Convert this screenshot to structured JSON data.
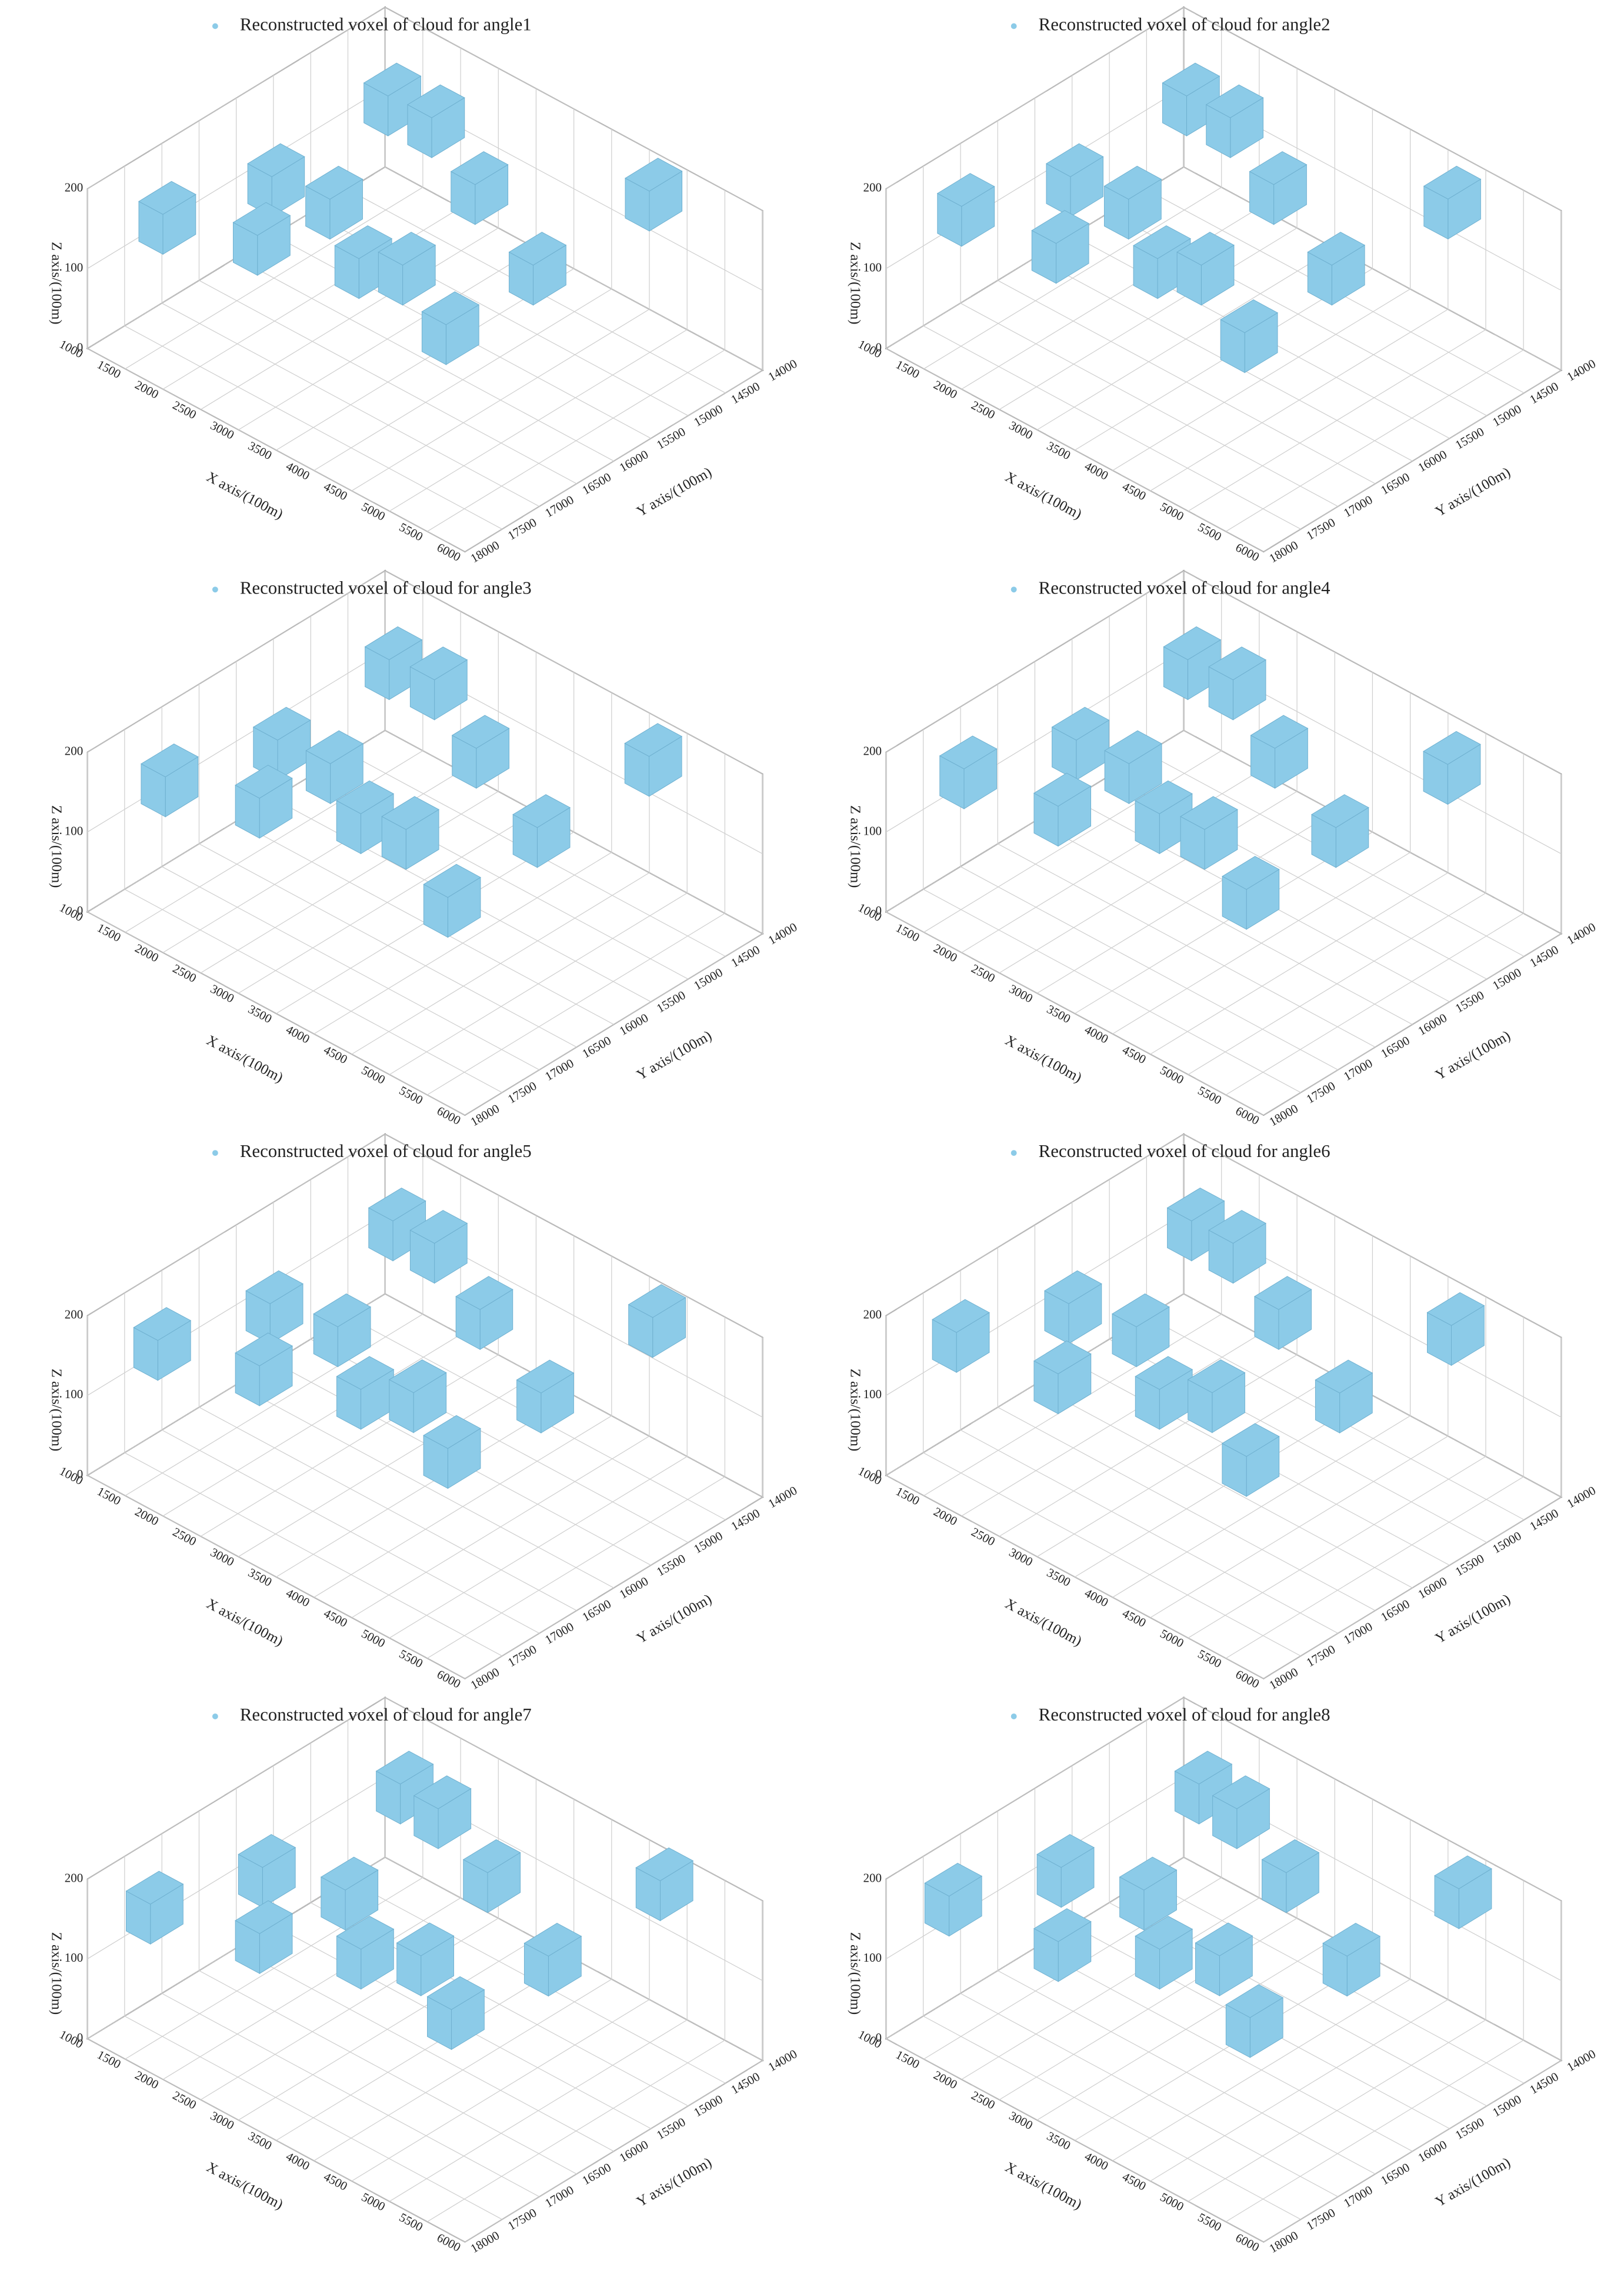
{
  "chart_data": [
    {
      "type": "scatter3d",
      "xlabel": "X axis/(100m)",
      "ylabel": "Y axis/(100m)",
      "zlabel": "Z axis/(100m)",
      "xlim": [
        1000,
        6000
      ],
      "ylim": [
        14000,
        18000
      ],
      "zlim": [
        0,
        200
      ],
      "xticks": [
        1000,
        1500,
        2000,
        2500,
        3000,
        3500,
        4000,
        4500,
        5000,
        5500,
        6000
      ],
      "yticks": [
        14000,
        14500,
        15000,
        15500,
        16000,
        16500,
        17000,
        17500,
        18000
      ],
      "zticks": [
        0,
        100,
        200
      ],
      "series": [
        {
          "name": "Reconstructed voxel of cloud for angle1",
          "color": "#8ccbe8",
          "x": [
            1344,
            1859,
            2343,
            3141,
            2396,
            3288,
            4424,
            4534,
            4681,
            1838,
            2435,
            3615
          ],
          "y": [
            17276,
            16336,
            17021,
            16465,
            14732,
            15054,
            16596,
            15537,
            14126,
            14753,
            16140,
            16360
          ],
          "z": [
            140,
            160,
            150,
            130,
            170,
            150,
            120,
            140,
            160,
            170,
            150,
            140
          ]
        }
      ]
    },
    {
      "type": "scatter3d",
      "xlabel": "X axis/(100m)",
      "ylabel": "Y axis/(100m)",
      "zlabel": "Z axis/(100m)",
      "xlim": [
        1000,
        6000
      ],
      "ylim": [
        14000,
        18000
      ],
      "zlim": [
        0,
        200
      ],
      "xticks": [
        1000,
        1500,
        2000,
        2500,
        3000,
        3500,
        4000,
        4500,
        5000,
        5500,
        6000
      ],
      "yticks": [
        14000,
        14500,
        15000,
        15500,
        16000,
        16500,
        17000,
        17500,
        18000
      ],
      "zticks": [
        0,
        100,
        200
      ],
      "series": [
        {
          "name": "Reconstructed voxel of cloud for angle2",
          "color": "#8ccbe8",
          "x": [
            1344,
            1859,
            2343,
            3141,
            2396,
            3288,
            4424,
            4534,
            4681,
            1838,
            2435,
            3615
          ],
          "y": [
            17276,
            16336,
            17021,
            16465,
            14732,
            15054,
            16596,
            15537,
            14126,
            14753,
            16140,
            16360
          ],
          "z": [
            150,
            160,
            140,
            130,
            170,
            150,
            110,
            140,
            150,
            170,
            150,
            140
          ]
        }
      ]
    },
    {
      "type": "scatter3d",
      "xlabel": "X axis/(100m)",
      "ylabel": "Y axis/(100m)",
      "zlabel": "Z axis/(100m)",
      "xlim": [
        1000,
        6000
      ],
      "ylim": [
        14000,
        18000
      ],
      "zlim": [
        0,
        200
      ],
      "xticks": [
        1000,
        1500,
        2000,
        2500,
        3000,
        3500,
        4000,
        4500,
        5000,
        5500,
        6000
      ],
      "yticks": [
        14000,
        14500,
        15000,
        15500,
        16000,
        16500,
        17000,
        17500,
        18000
      ],
      "zticks": [
        0,
        100,
        200
      ],
      "series": [
        {
          "name": "Reconstructed voxel of cloud for angle3",
          "color": "#8ccbe8",
          "x": [
            1350,
            1900,
            2350,
            3150,
            2400,
            3300,
            4450,
            4550,
            4700,
            1850,
            2450,
            3650
          ],
          "y": [
            17250,
            16300,
            17000,
            16450,
            14700,
            15050,
            16600,
            15500,
            14150,
            14750,
            16150,
            16350
          ],
          "z": [
            140,
            160,
            150,
            140,
            170,
            150,
            110,
            140,
            160,
            170,
            150,
            140
          ]
        }
      ]
    },
    {
      "type": "scatter3d",
      "xlabel": "X axis/(100m)",
      "ylabel": "Y axis/(100m)",
      "zlabel": "Z axis/(100m)",
      "xlim": [
        1000,
        6000
      ],
      "ylim": [
        14000,
        18000
      ],
      "zlim": [
        0,
        200
      ],
      "xticks": [
        1000,
        1500,
        2000,
        2500,
        3000,
        3500,
        4000,
        4500,
        5000,
        5500,
        6000
      ],
      "yticks": [
        14000,
        14500,
        15000,
        15500,
        16000,
        16500,
        17000,
        17500,
        18000
      ],
      "zticks": [
        0,
        100,
        200
      ],
      "series": [
        {
          "name": "Reconstructed voxel of cloud for angle4",
          "color": "#8ccbe8",
          "x": [
            1350,
            1900,
            2350,
            3150,
            2400,
            3300,
            4450,
            4550,
            4700,
            1850,
            2450,
            3650
          ],
          "y": [
            17250,
            16300,
            17000,
            16450,
            14700,
            15050,
            16600,
            15500,
            14150,
            14750,
            16150,
            16350
          ],
          "z": [
            150,
            160,
            140,
            140,
            170,
            150,
            120,
            140,
            150,
            170,
            150,
            140
          ]
        }
      ]
    },
    {
      "type": "scatter3d",
      "xlabel": "X axis/(100m)",
      "ylabel": "Y axis/(100m)",
      "zlabel": "Z axis/(100m)",
      "xlim": [
        1000,
        6000
      ],
      "ylim": [
        14000,
        18000
      ],
      "zlim": [
        0,
        200
      ],
      "xticks": [
        1000,
        1500,
        2000,
        2500,
        3000,
        3500,
        4000,
        4500,
        5000,
        5500,
        6000
      ],
      "yticks": [
        14000,
        14500,
        15000,
        15500,
        16000,
        16500,
        17000,
        17500,
        18000
      ],
      "zticks": [
        0,
        100,
        200
      ],
      "series": [
        {
          "name": "Reconstructed voxel of cloud for angle5",
          "color": "#8ccbe8",
          "x": [
            1300,
            1850,
            2400,
            3200,
            2400,
            3300,
            4400,
            4600,
            4700,
            1850,
            2500,
            3700
          ],
          "y": [
            17300,
            16350,
            17050,
            16500,
            14700,
            15000,
            16550,
            15500,
            14100,
            14700,
            16100,
            16300
          ],
          "z": [
            140,
            160,
            150,
            130,
            170,
            150,
            120,
            140,
            160,
            170,
            150,
            140
          ]
        }
      ]
    },
    {
      "type": "scatter3d",
      "xlabel": "X axis/(100m)",
      "ylabel": "Y axis/(100m)",
      "zlabel": "Z axis/(100m)",
      "xlim": [
        1000,
        6000
      ],
      "ylim": [
        14000,
        18000
      ],
      "zlim": [
        0,
        200
      ],
      "xticks": [
        1000,
        1500,
        2000,
        2500,
        3000,
        3500,
        4000,
        4500,
        5000,
        5500,
        6000
      ],
      "yticks": [
        14000,
        14500,
        15000,
        15500,
        16000,
        16500,
        17000,
        17500,
        18000
      ],
      "zticks": [
        0,
        100,
        200
      ],
      "series": [
        {
          "name": "Reconstructed voxel of cloud for angle6",
          "color": "#8ccbe8",
          "x": [
            1300,
            1850,
            2400,
            3200,
            2400,
            3300,
            4400,
            4600,
            4700,
            1850,
            2500,
            3700
          ],
          "y": [
            17300,
            16350,
            17050,
            16500,
            14700,
            15000,
            16550,
            15500,
            14100,
            14700,
            16100,
            16300
          ],
          "z": [
            150,
            160,
            140,
            130,
            170,
            150,
            110,
            140,
            150,
            170,
            150,
            140
          ]
        }
      ]
    },
    {
      "type": "scatter3d",
      "xlabel": "X axis/(100m)",
      "ylabel": "Y axis/(100m)",
      "zlabel": "Z axis/(100m)",
      "xlim": [
        1000,
        6000
      ],
      "ylim": [
        14000,
        18000
      ],
      "zlim": [
        0,
        200
      ],
      "xticks": [
        1000,
        1500,
        2000,
        2500,
        3000,
        3500,
        4000,
        4500,
        5000,
        5500,
        6000
      ],
      "yticks": [
        14000,
        14500,
        15000,
        15500,
        16000,
        16500,
        17000,
        17500,
        18000
      ],
      "zticks": [
        0,
        100,
        200
      ],
      "series": [
        {
          "name": "Reconstructed voxel of cloud for angle7",
          "color": "#8ccbe8",
          "x": [
            1250,
            1800,
            2450,
            3250,
            2450,
            3350,
            4400,
            4650,
            4750,
            1900,
            2550,
            3750
          ],
          "y": [
            17350,
            16400,
            17100,
            16550,
            14700,
            14950,
            16500,
            15450,
            14050,
            14650,
            16050,
            16250
          ],
          "z": [
            140,
            160,
            150,
            140,
            170,
            150,
            120,
            140,
            160,
            170,
            150,
            140
          ]
        }
      ]
    },
    {
      "type": "scatter3d",
      "xlabel": "X axis/(100m)",
      "ylabel": "Y axis/(100m)",
      "zlabel": "Z axis/(100m)",
      "xlim": [
        1000,
        6000
      ],
      "ylim": [
        14000,
        18000
      ],
      "zlim": [
        0,
        200
      ],
      "xticks": [
        1000,
        1500,
        2000,
        2500,
        3000,
        3500,
        4000,
        4500,
        5000,
        5500,
        6000
      ],
      "yticks": [
        14000,
        14500,
        15000,
        15500,
        16000,
        16500,
        17000,
        17500,
        18000
      ],
      "zticks": [
        0,
        100,
        200
      ],
      "series": [
        {
          "name": "Reconstructed voxel of cloud for angle8",
          "color": "#8ccbe8",
          "x": [
            1250,
            1800,
            2450,
            3250,
            2450,
            3350,
            4400,
            4650,
            4750,
            1900,
            2550,
            3750
          ],
          "y": [
            17350,
            16400,
            17100,
            16550,
            14700,
            14950,
            16500,
            15450,
            14050,
            14650,
            16050,
            16250
          ],
          "z": [
            150,
            160,
            140,
            140,
            170,
            150,
            110,
            140,
            150,
            170,
            150,
            140
          ]
        }
      ]
    }
  ]
}
